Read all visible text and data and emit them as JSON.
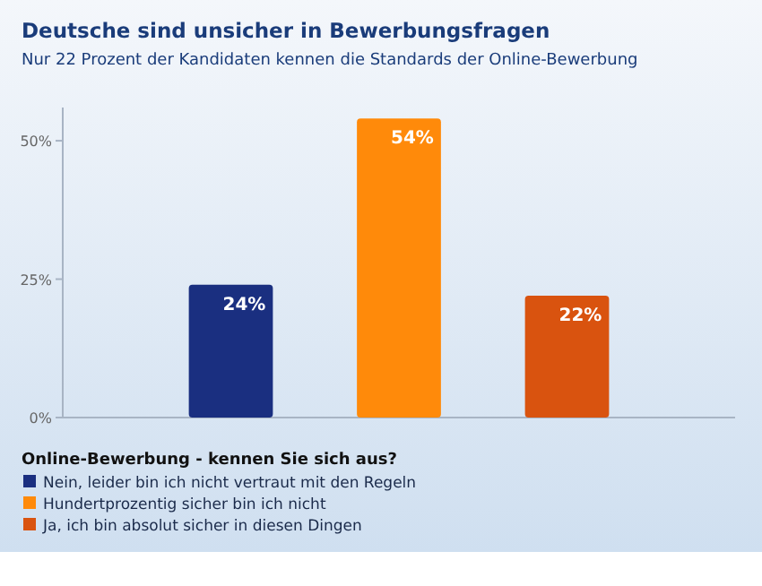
{
  "chart_data": {
    "type": "bar",
    "title": "Deutsche sind unsicher in Bewerbungsfragen",
    "subtitle": "Nur 22 Prozent der Kandidaten kennen die Standards der Online-Bewerbung",
    "legend_title": "Online-Bewerbung - kennen Sie sich aus?",
    "categories": [
      null
    ],
    "series": [
      {
        "name": "Nein, leider bin ich nicht vertraut mit den Regeln",
        "color": "#1a2f80",
        "values": [
          24
        ],
        "value_labels": [
          "24%"
        ]
      },
      {
        "name": "Hundertprozentig sicher bin ich nicht",
        "color": "#ff8a0a",
        "values": [
          54
        ],
        "value_labels": [
          "54%"
        ]
      },
      {
        "name": "Ja, ich bin absolut sicher in diesen Dingen",
        "color": "#d9530f",
        "values": [
          22
        ],
        "value_labels": [
          "22%"
        ]
      }
    ],
    "ylim": [
      0,
      56
    ],
    "yticks": [
      {
        "value": 0,
        "label": "0%"
      },
      {
        "value": 25,
        "label": "25%"
      },
      {
        "value": 50,
        "label": "50%"
      }
    ],
    "tick_labels": "y",
    "legend": "bottom",
    "grid": false
  }
}
